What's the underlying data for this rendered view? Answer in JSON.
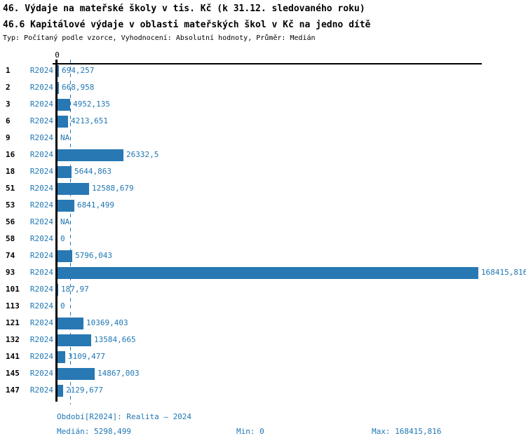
{
  "chart_data": {
    "type": "bar",
    "orientation": "horizontal",
    "title": "46. Výdaje na mateřské školy v tis. Kč (k 31.12. sledovaného roku)",
    "subtitle": "46.6 Kapitálové výdaje v oblasti mateřských škol v Kč na jedno dítě",
    "meta_line": "Typ: Počítaný podle vzorce, Vyhodnocení: Absolutní hodnoty, Průměr: Medián",
    "series_label": "R2024",
    "zero_tick_label": "0",
    "xlabel": "",
    "ylabel": "",
    "xlim": [
      0,
      168415.816
    ],
    "median": 5298.499,
    "grid": false,
    "legend": "none",
    "categories": [
      "1",
      "2",
      "3",
      "6",
      "9",
      "16",
      "18",
      "51",
      "53",
      "56",
      "58",
      "74",
      "93",
      "101",
      "113",
      "121",
      "132",
      "141",
      "145",
      "147"
    ],
    "rows": [
      {
        "id": "1",
        "value": 694.257,
        "display": "694,257"
      },
      {
        "id": "2",
        "value": 668.958,
        "display": "668,958"
      },
      {
        "id": "3",
        "value": 4952.135,
        "display": "4952,135"
      },
      {
        "id": "6",
        "value": 4213.651,
        "display": "4213,651"
      },
      {
        "id": "9",
        "value": null,
        "display": "NA"
      },
      {
        "id": "16",
        "value": 26332.5,
        "display": "26332,5"
      },
      {
        "id": "18",
        "value": 5644.863,
        "display": "5644,863"
      },
      {
        "id": "51",
        "value": 12588.679,
        "display": "12588,679"
      },
      {
        "id": "53",
        "value": 6841.499,
        "display": "6841,499"
      },
      {
        "id": "56",
        "value": null,
        "display": "NA"
      },
      {
        "id": "58",
        "value": 0,
        "display": "0"
      },
      {
        "id": "74",
        "value": 5796.043,
        "display": "5796,043"
      },
      {
        "id": "93",
        "value": 168415.816,
        "display": "168415,816"
      },
      {
        "id": "101",
        "value": 187.97,
        "display": "187,97"
      },
      {
        "id": "113",
        "value": 0,
        "display": "0"
      },
      {
        "id": "121",
        "value": 10369.403,
        "display": "10369,403"
      },
      {
        "id": "132",
        "value": 13584.665,
        "display": "13584,665"
      },
      {
        "id": "141",
        "value": 3109.477,
        "display": "3109,477"
      },
      {
        "id": "145",
        "value": 14867.003,
        "display": "14867,003"
      },
      {
        "id": "147",
        "value": 2129.677,
        "display": "2129,677"
      }
    ],
    "colors": {
      "bar": "#2878b4",
      "text": "#1f77b4",
      "axis": "#000000"
    }
  },
  "footer": {
    "period_line": "Období[R2024]: Realita – 2024",
    "median_label": "Medián: 5298,499",
    "min_label": "Min: 0",
    "max_label": "Max: 168415,816"
  }
}
